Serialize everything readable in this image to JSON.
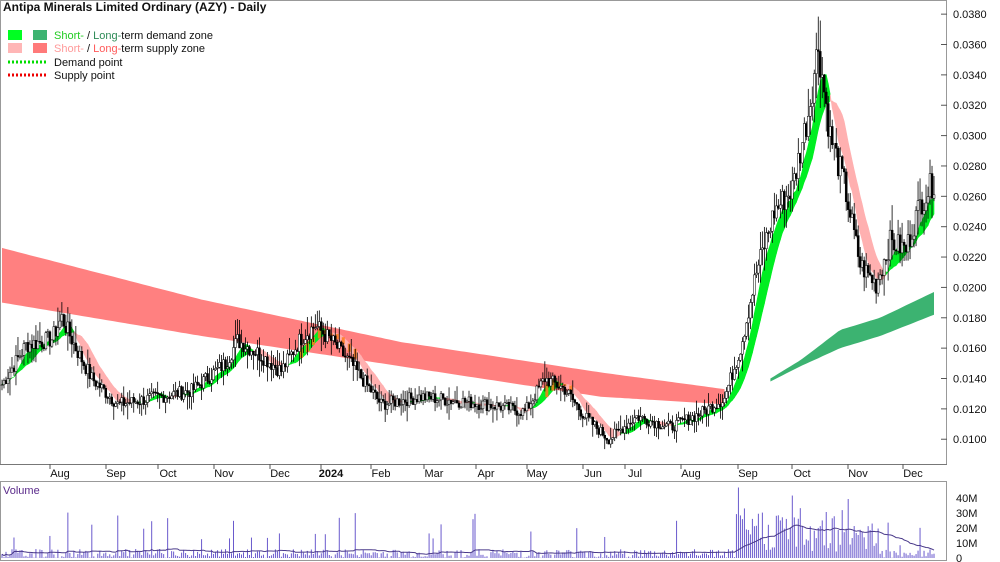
{
  "chart_data": {
    "type": "candlestick",
    "title": "Antipa Minerals Limited Ordinary (AZY) - Daily",
    "legend": {
      "placement": "top-left",
      "items": [
        {
          "kind": "zone",
          "colors": [
            "#00ff22",
            "#3cb371"
          ],
          "prefix": "Short-",
          "prefix_color": "#22cc22",
          "mid": " / ",
          "suffix": "Long-",
          "suffix_color": "#2e8b57",
          "rest": "term demand zone"
        },
        {
          "kind": "zone",
          "colors": [
            "#ffb6b6",
            "#ff7a7a"
          ],
          "prefix": "Short-",
          "prefix_color": "#ff9a9a",
          "mid": " / ",
          "suffix": "Long-",
          "suffix_color": "#ff5a5a",
          "rest": "term supply zone"
        },
        {
          "kind": "line",
          "color": "#00dd00",
          "label": "Demand point"
        },
        {
          "kind": "line",
          "color": "#ee0000",
          "label": "Supply point"
        }
      ]
    },
    "x_labels": [
      "Aug",
      "Sep",
      "Oct",
      "Nov",
      "Dec",
      "2024",
      "Feb",
      "Mar",
      "Apr",
      "May",
      "Jun",
      "Jul",
      "Aug",
      "Sep",
      "Oct",
      "Nov",
      "Dec"
    ],
    "y_axis": {
      "ticks": [
        "0.0380",
        "0.0360",
        "0.0340",
        "0.0320",
        "0.0300",
        "0.0280",
        "0.0260",
        "0.0240",
        "0.0220",
        "0.0200",
        "0.0180",
        "0.0160",
        "0.0140",
        "0.0120",
        "0.0100"
      ],
      "min": 0.0085,
      "max": 0.0388,
      "side": "right"
    },
    "price_keypoints": [
      [
        0,
        0.0136
      ],
      [
        12,
        0.0162
      ],
      [
        25,
        0.0166
      ],
      [
        30,
        0.018
      ],
      [
        37,
        0.016
      ],
      [
        45,
        0.014
      ],
      [
        58,
        0.0123
      ],
      [
        75,
        0.0127
      ],
      [
        95,
        0.0132
      ],
      [
        112,
        0.015
      ],
      [
        118,
        0.0165
      ],
      [
        127,
        0.0158
      ],
      [
        140,
        0.0145
      ],
      [
        150,
        0.0167
      ],
      [
        157,
        0.0175
      ],
      [
        165,
        0.0165
      ],
      [
        176,
        0.0148
      ],
      [
        190,
        0.0123
      ],
      [
        210,
        0.0128
      ],
      [
        230,
        0.0125
      ],
      [
        248,
        0.0122
      ],
      [
        262,
        0.0118
      ],
      [
        272,
        0.014
      ],
      [
        282,
        0.0133
      ],
      [
        292,
        0.0115
      ],
      [
        304,
        0.01
      ],
      [
        318,
        0.0115
      ],
      [
        335,
        0.0108
      ],
      [
        350,
        0.0117
      ],
      [
        362,
        0.0127
      ],
      [
        370,
        0.016
      ],
      [
        378,
        0.021
      ],
      [
        387,
        0.025
      ],
      [
        396,
        0.0265
      ],
      [
        404,
        0.0315
      ],
      [
        409,
        0.036
      ],
      [
        415,
        0.03
      ],
      [
        422,
        0.0268
      ],
      [
        430,
        0.0215
      ],
      [
        438,
        0.0202
      ],
      [
        445,
        0.023
      ],
      [
        453,
        0.0225
      ],
      [
        460,
        0.0255
      ],
      [
        467,
        0.027
      ]
    ],
    "long_supply_zone": {
      "color": "#ff8080",
      "top": [
        [
          0,
          0.0226
        ],
        [
          100,
          0.0192
        ],
        [
          200,
          0.0164
        ],
        [
          300,
          0.0144
        ],
        [
          362,
          0.0133
        ]
      ],
      "bottom": [
        [
          0,
          0.019
        ],
        [
          100,
          0.0168
        ],
        [
          200,
          0.0148
        ],
        [
          300,
          0.0128
        ],
        [
          362,
          0.0123
        ]
      ]
    },
    "long_demand_zone": {
      "color": "#3cb371",
      "top": [
        [
          385,
          0.014
        ],
        [
          400,
          0.0152
        ],
        [
          420,
          0.0172
        ],
        [
          440,
          0.018
        ],
        [
          467,
          0.0197
        ]
      ],
      "bottom": [
        [
          385,
          0.0138
        ],
        [
          400,
          0.0148
        ],
        [
          420,
          0.016
        ],
        [
          440,
          0.0168
        ],
        [
          467,
          0.0182
        ]
      ]
    },
    "volume_panel": {
      "label": "Volume",
      "ticks": [
        "40M",
        "30M",
        "20M",
        "10M",
        "0"
      ],
      "max_millions": 48
    },
    "grid": false
  }
}
